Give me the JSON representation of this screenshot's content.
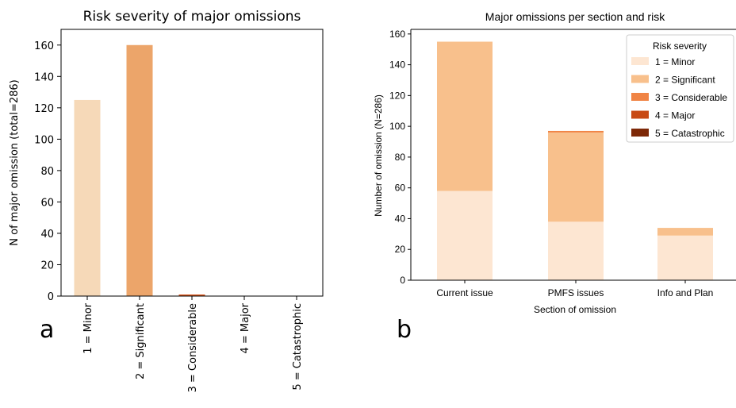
{
  "panel_labels": {
    "a": "a",
    "b": "b"
  },
  "colors": {
    "minor": "#f6d9b8",
    "significant": "#f8c08c",
    "considerable": "#f08445",
    "major": "#c84a15",
    "catastrophic": "#7d2807",
    "left_significant": "#eca56a",
    "left_considerable": "#d9571c",
    "left_minor": "#f6d9b8",
    "right_minor": "#fde6d2"
  },
  "chart_data": [
    {
      "type": "bar",
      "title": "Risk severity of major omissions",
      "xlabel": "",
      "ylabel": "N of major omission (total=286)",
      "categories": [
        "1 = Minor",
        "2 = Significant",
        "3 = Considerable",
        "4 = Major",
        "5 = Catastrophic"
      ],
      "values": [
        125,
        160,
        1,
        0,
        0
      ],
      "ylim": [
        0,
        170
      ],
      "yticks": [
        0,
        20,
        40,
        60,
        80,
        100,
        120,
        140,
        160
      ],
      "grid": false
    },
    {
      "type": "bar",
      "stacked": true,
      "title": "Major omissions per section and risk",
      "xlabel": "Section of omission",
      "ylabel": "Number of omission (N=286)",
      "categories": [
        "Current issue",
        "PMFS issues",
        "Info and Plan"
      ],
      "series": [
        {
          "name": "1 = Minor",
          "values": [
            58,
            38,
            29
          ]
        },
        {
          "name": "2 = Significant",
          "values": [
            97,
            58,
            5
          ]
        },
        {
          "name": "3 = Considerable",
          "values": [
            0,
            1,
            0
          ]
        },
        {
          "name": "4 = Major",
          "values": [
            0,
            0,
            0
          ]
        },
        {
          "name": "5 = Catastrophic",
          "values": [
            0,
            0,
            0
          ]
        }
      ],
      "ylim": [
        0,
        163
      ],
      "yticks": [
        0,
        20,
        40,
        60,
        80,
        100,
        120,
        140,
        160
      ],
      "legend": {
        "title": "Risk severity",
        "placement": "top-right"
      },
      "grid": false
    }
  ]
}
